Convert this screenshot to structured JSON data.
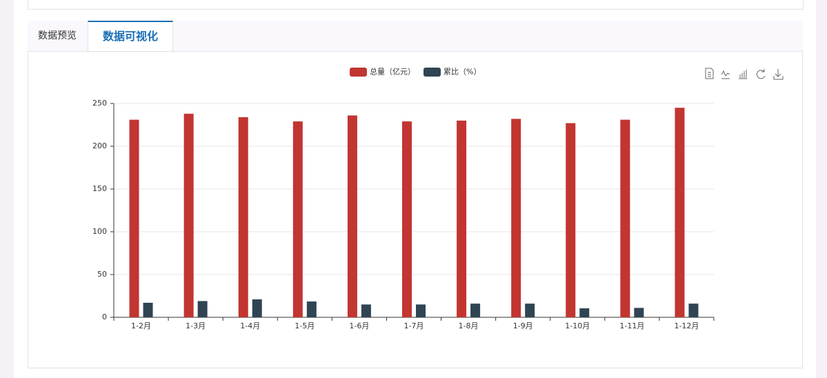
{
  "tabs": [
    "数据预览",
    "数据可视化"
  ],
  "chart_data": {
    "type": "bar",
    "categories": [
      "1-2月",
      "1-3月",
      "1-4月",
      "1-5月",
      "1-6月",
      "1-7月",
      "1-8月",
      "1-9月",
      "1-10月",
      "1-11月",
      "1-12月"
    ],
    "series": [
      {
        "name": "总量（亿元）",
        "color": "#c23531",
        "values": [
          231,
          238,
          234,
          229,
          236,
          229,
          230,
          232,
          227,
          231,
          245
        ]
      },
      {
        "name": "累比（%）",
        "color": "#2f4554",
        "values": [
          17,
          19,
          21,
          18.5,
          15,
          15,
          16,
          16,
          10.5,
          11,
          16
        ]
      }
    ],
    "ylim": [
      0,
      250
    ],
    "yticks": [
      0,
      50,
      100,
      150,
      200,
      250
    ],
    "grid": true,
    "legend": "top"
  }
}
